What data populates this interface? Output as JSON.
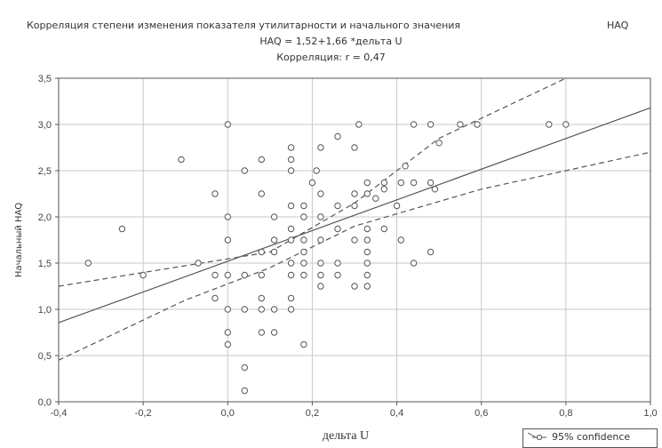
{
  "chart_data": {
    "type": "scatter",
    "title": "Корреляция степени изменения показателя утилитарности и начального значения",
    "title_right": "HAQ",
    "subtitle": "HAQ = 1,52+1,66 *дельта    U",
    "correlation_text": "Корреляция: r = 0,47",
    "xlabel": "дельта U",
    "ylabel": "Начальный HAQ",
    "xlim": [
      -0.4,
      1.0
    ],
    "ylim": [
      0.0,
      3.5
    ],
    "x_ticks": [
      "-0,4",
      "-0,2",
      "0,0",
      "0,2",
      "0,4",
      "0,6",
      "0,8",
      "1,0"
    ],
    "y_ticks": [
      "0,0",
      "0,5",
      "1,0",
      "1,5",
      "2,0",
      "2,5",
      "3,0",
      "3,5"
    ],
    "grid": true,
    "legend": {
      "label": "95% confidence",
      "placement": "bottom-right"
    },
    "regression": {
      "intercept": 1.52,
      "slope": 1.66
    },
    "confidence_band": {
      "upper": [
        [
          -0.4,
          1.25
        ],
        [
          0.1,
          1.62
        ],
        [
          0.3,
          2.15
        ],
        [
          0.5,
          2.85
        ],
        [
          0.8,
          3.5
        ]
      ],
      "lower": [
        [
          -0.4,
          0.45
        ],
        [
          -0.1,
          1.1
        ],
        [
          0.1,
          1.45
        ],
        [
          0.3,
          1.9
        ],
        [
          0.6,
          2.3
        ],
        [
          1.0,
          2.7
        ]
      ]
    },
    "series": [
      {
        "points": [
          [
            -0.33,
            1.5
          ],
          [
            -0.25,
            1.87
          ],
          [
            -0.2,
            1.37
          ],
          [
            -0.11,
            2.62
          ],
          [
            -0.07,
            1.5
          ],
          [
            -0.03,
            2.25
          ],
          [
            -0.03,
            1.37
          ],
          [
            -0.03,
            1.12
          ],
          [
            0.0,
            3.0
          ],
          [
            0.0,
            2.0
          ],
          [
            0.0,
            1.75
          ],
          [
            0.0,
            1.37
          ],
          [
            0.0,
            1.0
          ],
          [
            0.0,
            0.75
          ],
          [
            0.0,
            0.62
          ],
          [
            0.04,
            2.5
          ],
          [
            0.04,
            1.37
          ],
          [
            0.04,
            1.0
          ],
          [
            0.04,
            0.37
          ],
          [
            0.04,
            0.12
          ],
          [
            0.08,
            2.62
          ],
          [
            0.08,
            2.25
          ],
          [
            0.08,
            1.62
          ],
          [
            0.08,
            1.37
          ],
          [
            0.08,
            1.12
          ],
          [
            0.08,
            1.0
          ],
          [
            0.08,
            0.75
          ],
          [
            0.11,
            2.0
          ],
          [
            0.11,
            1.75
          ],
          [
            0.11,
            1.62
          ],
          [
            0.11,
            1.0
          ],
          [
            0.11,
            0.75
          ],
          [
            0.15,
            2.75
          ],
          [
            0.15,
            2.62
          ],
          [
            0.15,
            2.5
          ],
          [
            0.15,
            2.12
          ],
          [
            0.15,
            1.87
          ],
          [
            0.15,
            1.75
          ],
          [
            0.15,
            1.5
          ],
          [
            0.15,
            1.37
          ],
          [
            0.15,
            1.12
          ],
          [
            0.15,
            1.0
          ],
          [
            0.18,
            2.12
          ],
          [
            0.18,
            2.0
          ],
          [
            0.18,
            1.75
          ],
          [
            0.18,
            1.62
          ],
          [
            0.18,
            1.5
          ],
          [
            0.18,
            1.37
          ],
          [
            0.18,
            0.62
          ],
          [
            0.2,
            2.37
          ],
          [
            0.21,
            2.5
          ],
          [
            0.22,
            2.75
          ],
          [
            0.22,
            2.25
          ],
          [
            0.22,
            2.0
          ],
          [
            0.22,
            1.75
          ],
          [
            0.22,
            1.5
          ],
          [
            0.22,
            1.37
          ],
          [
            0.22,
            1.25
          ],
          [
            0.26,
            2.87
          ],
          [
            0.26,
            2.12
          ],
          [
            0.26,
            1.87
          ],
          [
            0.26,
            1.5
          ],
          [
            0.26,
            1.37
          ],
          [
            0.3,
            2.75
          ],
          [
            0.3,
            2.25
          ],
          [
            0.3,
            2.12
          ],
          [
            0.3,
            1.75
          ],
          [
            0.3,
            1.25
          ],
          [
            0.31,
            3.0
          ],
          [
            0.33,
            2.37
          ],
          [
            0.33,
            2.25
          ],
          [
            0.33,
            1.87
          ],
          [
            0.33,
            1.75
          ],
          [
            0.33,
            1.62
          ],
          [
            0.33,
            1.5
          ],
          [
            0.33,
            1.37
          ],
          [
            0.33,
            1.25
          ],
          [
            0.35,
            2.2
          ],
          [
            0.37,
            2.37
          ],
          [
            0.37,
            1.87
          ],
          [
            0.37,
            2.3
          ],
          [
            0.4,
            2.12
          ],
          [
            0.41,
            2.37
          ],
          [
            0.41,
            1.75
          ],
          [
            0.42,
            2.55
          ],
          [
            0.44,
            3.0
          ],
          [
            0.44,
            2.37
          ],
          [
            0.44,
            1.5
          ],
          [
            0.48,
            3.0
          ],
          [
            0.48,
            2.37
          ],
          [
            0.48,
            1.62
          ],
          [
            0.49,
            2.3
          ],
          [
            0.5,
            2.8
          ],
          [
            0.55,
            3.0
          ],
          [
            0.59,
            3.0
          ],
          [
            0.76,
            3.0
          ],
          [
            0.8,
            3.0
          ]
        ]
      }
    ]
  }
}
